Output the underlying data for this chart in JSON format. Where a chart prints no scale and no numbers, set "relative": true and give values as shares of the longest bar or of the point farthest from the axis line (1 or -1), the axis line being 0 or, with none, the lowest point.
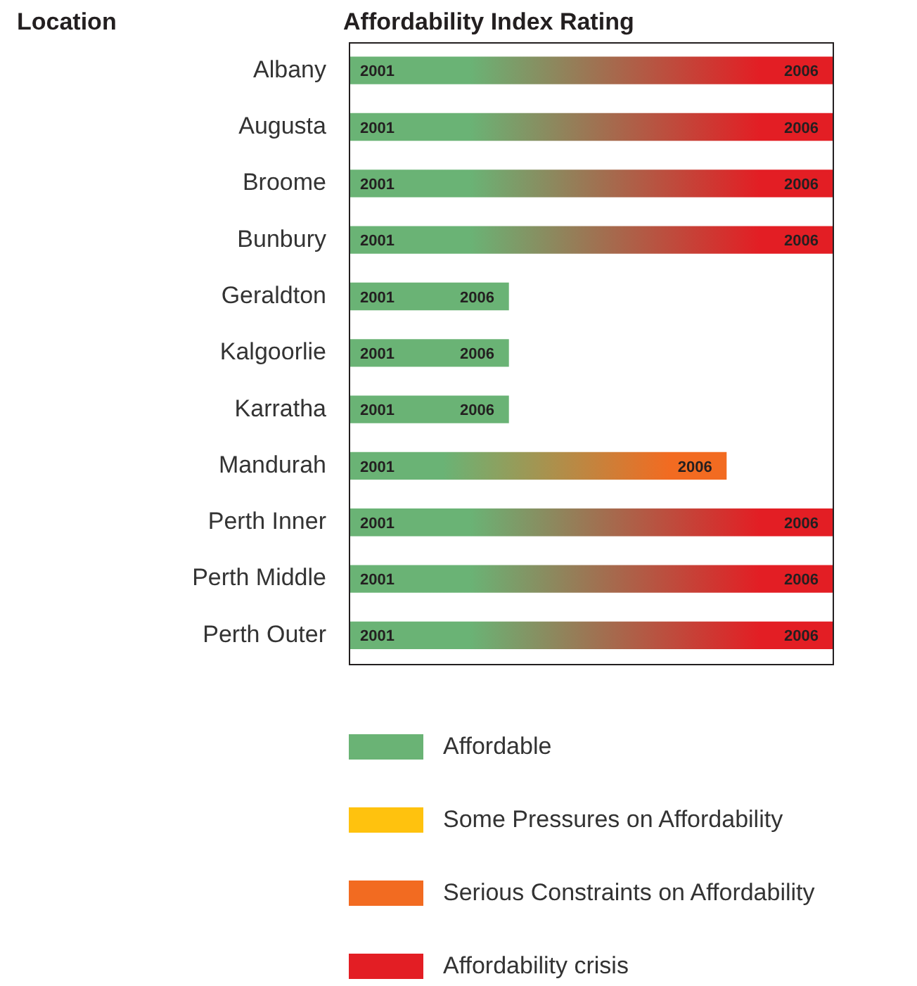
{
  "chart_data": {
    "type": "bar",
    "orientation": "horizontal",
    "stacked": true,
    "relative": true,
    "title": "Affordability Index Rating",
    "ylabel": "Location",
    "legend": "bottom",
    "categories": [
      "Albany",
      "Augusta",
      "Broome",
      "Bunbury",
      "Geraldton",
      "Kalgoorlie",
      "Karratha",
      "Mandurah",
      "Perth Inner",
      "Perth Middle",
      "Perth Outer"
    ],
    "series": [
      {
        "name": "Affordable",
        "color": "#6ab375",
        "values": [
          null,
          null,
          null,
          null,
          0.33,
          0.33,
          0.33,
          null,
          null,
          null,
          null
        ]
      },
      {
        "name": "Some Pressures on Affordability",
        "color": "#ffc20e",
        "values": [
          null,
          null,
          null,
          null,
          null,
          null,
          null,
          null,
          null,
          null,
          null
        ]
      },
      {
        "name": "Serious Constraints on Affordability",
        "color": "#f26b21",
        "values": [
          null,
          null,
          null,
          null,
          null,
          null,
          null,
          0.78,
          null,
          null,
          null
        ]
      },
      {
        "name": "Affordability crisis",
        "color": "#e31e24",
        "values": [
          1,
          1,
          1,
          1,
          null,
          null,
          null,
          null,
          1,
          1,
          1
        ]
      }
    ],
    "annotations": [
      {
        "text": "2001",
        "x": 0,
        "y": "Albany"
      },
      {
        "text": "2006",
        "x": 1,
        "y": "Albany"
      },
      {
        "text": "2001",
        "x": 0,
        "y": "Augusta"
      },
      {
        "text": "2006",
        "x": 1,
        "y": "Augusta"
      },
      {
        "text": "2001",
        "x": 0,
        "y": "Broome"
      },
      {
        "text": "2006",
        "x": 1,
        "y": "Broome"
      },
      {
        "text": "2001",
        "x": 0,
        "y": "Bunbury"
      },
      {
        "text": "2006",
        "x": 1,
        "y": "Bunbury"
      },
      {
        "text": "2001",
        "x": 0,
        "y": "Geraldton"
      },
      {
        "text": "2006",
        "x": 0.33,
        "y": "Geraldton"
      },
      {
        "text": "2001",
        "x": 0,
        "y": "Kalgoorlie"
      },
      {
        "text": "2006",
        "x": 0.33,
        "y": "Kalgoorlie"
      },
      {
        "text": "2001",
        "x": 0,
        "y": "Karratha"
      },
      {
        "text": "2006",
        "x": 0.33,
        "y": "Karratha"
      },
      {
        "text": "2001",
        "x": 0,
        "y": "Mandurah"
      },
      {
        "text": "2006",
        "x": 0.78,
        "y": "Mandurah"
      },
      {
        "text": "2001",
        "x": 0,
        "y": "Perth Inner"
      },
      {
        "text": "2006",
        "x": 1,
        "y": "Perth Inner"
      },
      {
        "text": "2001",
        "x": 0,
        "y": "Perth Middle"
      },
      {
        "text": "2006",
        "x": 1,
        "y": "Perth Middle"
      },
      {
        "text": "2001",
        "x": 0,
        "y": "Perth Outer"
      },
      {
        "text": "2006",
        "x": 1,
        "y": "Perth Outer"
      }
    ]
  }
}
